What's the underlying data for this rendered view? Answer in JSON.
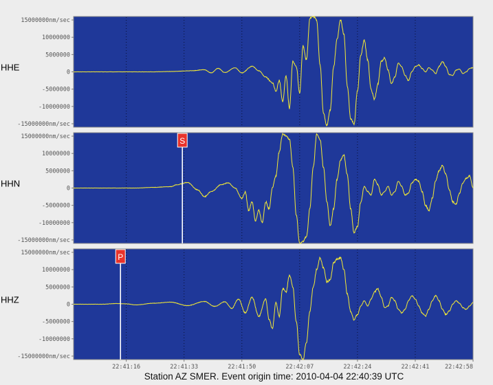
{
  "caption": "Station AZ SMER.  Event origin time: 2010-04-04 22:40:39 UTC",
  "colors": {
    "background": "#ededed",
    "panel": "#1f3899",
    "trace": "#f4ea35",
    "pick_line": "#ffffff",
    "pick_badge": "#e8332b",
    "grid": "#0a0f30"
  },
  "chart_data": {
    "type": "line",
    "x_tick_labels": [
      "22:41:16",
      "22:41:33",
      "22:41:50",
      "22:42:07",
      "22:42:24",
      "22:42:41",
      "22:42:58"
    ],
    "y_tick_labels": [
      "15000000nm/sec",
      "10000000",
      "5000000",
      "0",
      "-5000000",
      "-10000000",
      "-15000000nm/sec"
    ],
    "y_ticks": [
      15000000,
      10000000,
      5000000,
      0,
      -5000000,
      -10000000,
      -15000000
    ],
    "ylim": [
      -16000000,
      16000000
    ],
    "x_range_seconds": [
      21.5,
      139
    ],
    "x_tick_seconds": [
      37,
      54,
      71,
      88,
      105,
      122,
      139
    ],
    "grid": "dotted vertical lines at x ticks",
    "series": [
      {
        "name": "HHE",
        "samples": [
          [
            21.5,
            0
          ],
          [
            45,
            0
          ],
          [
            50,
            100000
          ],
          [
            56,
            300000
          ],
          [
            60,
            600000
          ],
          [
            62,
            -300000
          ],
          [
            64,
            1000000
          ],
          [
            66,
            -200000
          ],
          [
            69,
            1200000
          ],
          [
            71,
            -300000
          ],
          [
            74,
            1600000
          ],
          [
            76,
            300000
          ],
          [
            78,
            -1500000
          ],
          [
            80,
            -3200000
          ],
          [
            81,
            -5500000
          ],
          [
            82,
            -2500000
          ],
          [
            83,
            -8500000
          ],
          [
            84,
            -1200000
          ],
          [
            85,
            -10500000
          ],
          [
            86,
            3000000
          ],
          [
            87,
            1500000
          ],
          [
            88,
            -6000000
          ],
          [
            89,
            7500000
          ],
          [
            90,
            3500000
          ],
          [
            91,
            15500000
          ],
          [
            92,
            16000000
          ],
          [
            93,
            15000000
          ],
          [
            94,
            2000000
          ],
          [
            95,
            -12000000
          ],
          [
            96,
            -15500000
          ],
          [
            97,
            -11000000
          ],
          [
            98,
            1500000
          ],
          [
            99,
            9500000
          ],
          [
            100,
            15000000
          ],
          [
            101,
            11000000
          ],
          [
            102,
            -4000000
          ],
          [
            103,
            -13500000
          ],
          [
            104,
            -15000000
          ],
          [
            105,
            -5500000
          ],
          [
            106,
            5000000
          ],
          [
            107,
            9000000
          ],
          [
            108,
            3500000
          ],
          [
            109,
            -5000000
          ],
          [
            110,
            -8000000
          ],
          [
            111,
            -3500000
          ],
          [
            112,
            3000000
          ],
          [
            113,
            4000000
          ],
          [
            114,
            500000
          ],
          [
            115,
            -3500000
          ],
          [
            116,
            -1500000
          ],
          [
            117,
            2500000
          ],
          [
            118,
            1500000
          ],
          [
            119,
            -1000000
          ],
          [
            120,
            -2500000
          ],
          [
            121,
            0
          ],
          [
            122,
            1500000
          ],
          [
            123,
            2000000
          ],
          [
            124,
            1000000
          ],
          [
            125,
            0
          ],
          [
            126,
            1200000
          ],
          [
            127,
            500000
          ],
          [
            128,
            -500000
          ],
          [
            129,
            1500000
          ],
          [
            130,
            3000000
          ],
          [
            131,
            1500000
          ],
          [
            132,
            -800000
          ],
          [
            133,
            -1000000
          ],
          [
            134,
            500000
          ],
          [
            135,
            800000
          ],
          [
            136,
            -500000
          ],
          [
            137,
            0
          ],
          [
            138,
            1000000
          ],
          [
            139,
            1200000
          ]
        ]
      },
      {
        "name": "HHN",
        "samples": [
          [
            21.5,
            0
          ],
          [
            40,
            0
          ],
          [
            45,
            200000
          ],
          [
            50,
            400000
          ],
          [
            52,
            1000000
          ],
          [
            55,
            1600000
          ],
          [
            58,
            -500000
          ],
          [
            60,
            -2500000
          ],
          [
            62,
            -1000000
          ],
          [
            65,
            1000000
          ],
          [
            67,
            1500000
          ],
          [
            69,
            0
          ],
          [
            71,
            -3000000
          ],
          [
            72,
            -1200000
          ],
          [
            73,
            -6500000
          ],
          [
            74,
            -4000000
          ],
          [
            75,
            -9500000
          ],
          [
            76,
            -6500000
          ],
          [
            77,
            -10000000
          ],
          [
            78,
            -4000000
          ],
          [
            79,
            -6000000
          ],
          [
            80,
            200000
          ],
          [
            81,
            3500000
          ],
          [
            82,
            10500000
          ],
          [
            83,
            15500000
          ],
          [
            84,
            15200000
          ],
          [
            85,
            14000000
          ],
          [
            86,
            6000000
          ],
          [
            87,
            -8000000
          ],
          [
            88,
            -16000000
          ],
          [
            89,
            -15500000
          ],
          [
            90,
            -14000000
          ],
          [
            91,
            -6000000
          ],
          [
            92,
            6000000
          ],
          [
            93,
            15500000
          ],
          [
            94,
            14000000
          ],
          [
            95,
            6000000
          ],
          [
            96,
            -4000000
          ],
          [
            97,
            -11000000
          ],
          [
            98,
            -6000000
          ],
          [
            99,
            2500000
          ],
          [
            100,
            8000000
          ],
          [
            101,
            9500000
          ],
          [
            102,
            4000000
          ],
          [
            103,
            -6000000
          ],
          [
            104,
            -13000000
          ],
          [
            105,
            -11000000
          ],
          [
            106,
            -4000000
          ],
          [
            107,
            500000
          ],
          [
            108,
            -1000000
          ],
          [
            109,
            -2000000
          ],
          [
            110,
            2500000
          ],
          [
            111,
            1000000
          ],
          [
            112,
            -2000000
          ],
          [
            113,
            -1000000
          ],
          [
            114,
            500000
          ],
          [
            115,
            -2000000
          ],
          [
            116,
            -1000000
          ],
          [
            117,
            2000000
          ],
          [
            118,
            500000
          ],
          [
            119,
            -2000000
          ],
          [
            120,
            -1500000
          ],
          [
            121,
            1500000
          ],
          [
            122,
            2500000
          ],
          [
            123,
            2000000
          ],
          [
            124,
            -1000000
          ],
          [
            125,
            -5000000
          ],
          [
            126,
            -6500000
          ],
          [
            127,
            -3000000
          ],
          [
            128,
            2000000
          ],
          [
            129,
            5000000
          ],
          [
            130,
            6500000
          ],
          [
            131,
            4000000
          ],
          [
            132,
            -500000
          ],
          [
            133,
            -4000000
          ],
          [
            134,
            -4500000
          ],
          [
            135,
            -1500000
          ],
          [
            136,
            1500000
          ],
          [
            137,
            2800000
          ],
          [
            138,
            3500000
          ],
          [
            139,
            0
          ]
        ]
      },
      {
        "name": "HHZ",
        "samples": [
          [
            21.5,
            0
          ],
          [
            30,
            0
          ],
          [
            34,
            200000
          ],
          [
            37,
            100000
          ],
          [
            40,
            -200000
          ],
          [
            45,
            300000
          ],
          [
            50,
            600000
          ],
          [
            55,
            -400000
          ],
          [
            60,
            800000
          ],
          [
            63,
            -600000
          ],
          [
            66,
            700000
          ],
          [
            68,
            -1200000
          ],
          [
            70,
            1500000
          ],
          [
            72,
            -2500000
          ],
          [
            74,
            2000000
          ],
          [
            76,
            -3500000
          ],
          [
            78,
            1500000
          ],
          [
            79,
            -4500000
          ],
          [
            80,
            -7000000
          ],
          [
            81,
            500000
          ],
          [
            82,
            -3500000
          ],
          [
            83,
            4500000
          ],
          [
            84,
            3500000
          ],
          [
            85,
            8500000
          ],
          [
            86,
            5000000
          ],
          [
            87,
            -5000000
          ],
          [
            88,
            -14500000
          ],
          [
            89,
            -16000000
          ],
          [
            90,
            -11000000
          ],
          [
            91,
            -2000000
          ],
          [
            92,
            5000000
          ],
          [
            93,
            10000000
          ],
          [
            94,
            13500000
          ],
          [
            95,
            10500000
          ],
          [
            96,
            6500000
          ],
          [
            97,
            7000000
          ],
          [
            98,
            12000000
          ],
          [
            99,
            13000000
          ],
          [
            100,
            13500000
          ],
          [
            101,
            10000000
          ],
          [
            102,
            3000000
          ],
          [
            103,
            -2000000
          ],
          [
            104,
            -4500000
          ],
          [
            105,
            -3000000
          ],
          [
            106,
            -500000
          ],
          [
            107,
            1000000
          ],
          [
            108,
            -500000
          ],
          [
            109,
            1500000
          ],
          [
            110,
            3500000
          ],
          [
            111,
            4500000
          ],
          [
            112,
            2000000
          ],
          [
            113,
            -1000000
          ],
          [
            114,
            -500000
          ],
          [
            115,
            2000000
          ],
          [
            116,
            1000000
          ],
          [
            117,
            -1500000
          ],
          [
            118,
            -2500000
          ],
          [
            119,
            -1500000
          ],
          [
            120,
            1000000
          ],
          [
            121,
            2500000
          ],
          [
            122,
            1500000
          ],
          [
            123,
            -500000
          ],
          [
            124,
            -2500000
          ],
          [
            125,
            -3500000
          ],
          [
            126,
            -1500000
          ],
          [
            127,
            1000000
          ],
          [
            128,
            2500000
          ],
          [
            129,
            1000000
          ],
          [
            130,
            -1500000
          ],
          [
            131,
            -3000000
          ],
          [
            132,
            -2000000
          ],
          [
            133,
            0
          ],
          [
            134,
            1000000
          ],
          [
            135,
            300000
          ],
          [
            136,
            -1000000
          ],
          [
            137,
            -1500000
          ],
          [
            138,
            -500000
          ],
          [
            139,
            500000
          ]
        ]
      }
    ],
    "picks": [
      {
        "label": "S",
        "channel": "HHN",
        "time_seconds": 53.5
      },
      {
        "label": "P",
        "channel": "HHZ",
        "time_seconds": 35.3
      }
    ]
  }
}
